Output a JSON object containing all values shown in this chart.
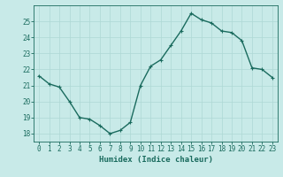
{
  "x": [
    0,
    1,
    2,
    3,
    4,
    5,
    6,
    7,
    8,
    9,
    10,
    11,
    12,
    13,
    14,
    15,
    16,
    17,
    18,
    19,
    20,
    21,
    22,
    23
  ],
  "y": [
    21.6,
    21.1,
    20.9,
    20.0,
    19.0,
    18.9,
    18.5,
    18.0,
    18.2,
    18.7,
    21.0,
    22.2,
    22.6,
    23.5,
    24.4,
    25.5,
    25.1,
    24.9,
    24.4,
    24.3,
    23.8,
    22.1,
    22.0,
    21.5
  ],
  "line_color": "#1a6b5e",
  "marker": "+",
  "marker_size": 3,
  "bg_color": "#c8eae8",
  "grid_color": "#aed8d4",
  "axis_color": "#1a6b5e",
  "xlabel": "Humidex (Indice chaleur)",
  "xlim": [
    -0.5,
    23.5
  ],
  "ylim": [
    17.5,
    26.0
  ],
  "yticks": [
    18,
    19,
    20,
    21,
    22,
    23,
    24,
    25
  ],
  "xticks": [
    0,
    1,
    2,
    3,
    4,
    5,
    6,
    7,
    8,
    9,
    10,
    11,
    12,
    13,
    14,
    15,
    16,
    17,
    18,
    19,
    20,
    21,
    22,
    23
  ],
  "tick_label_fontsize": 5.5,
  "xlabel_fontsize": 6.5,
  "linewidth": 1.0
}
